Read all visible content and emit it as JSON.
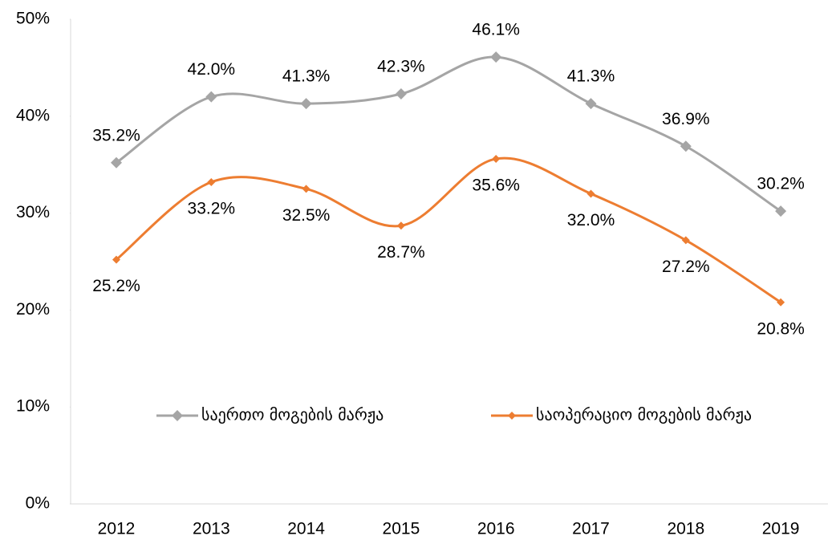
{
  "chart_data": {
    "type": "line",
    "categories": [
      "2012",
      "2013",
      "2014",
      "2015",
      "2016",
      "2017",
      "2018",
      "2019"
    ],
    "series": [
      {
        "name": "საერთო მოგების მარჟა",
        "color": "#a5a5a5",
        "marker": "diamond",
        "values": [
          35.2,
          42.0,
          41.3,
          42.3,
          46.1,
          41.3,
          36.9,
          30.2
        ],
        "value_labels": [
          "35.2%",
          "42.0%",
          "41.3%",
          "42.3%",
          "46.1%",
          "41.3%",
          "36.9%",
          "30.2%"
        ]
      },
      {
        "name": "საოპერაციო მოგების მარჟა",
        "color": "#ed7d31",
        "marker": "diamond",
        "values": [
          25.2,
          33.2,
          32.5,
          28.7,
          35.6,
          32.0,
          27.2,
          20.8
        ],
        "value_labels": [
          "25.2%",
          "33.2%",
          "32.5%",
          "28.7%",
          "35.6%",
          "32.0%",
          "27.2%",
          "20.8%"
        ]
      }
    ],
    "ylim": [
      0,
      50
    ],
    "yticks": [
      {
        "value": 0,
        "label": "0%"
      },
      {
        "value": 10,
        "label": "10%"
      },
      {
        "value": 20,
        "label": "20%"
      },
      {
        "value": 30,
        "label": "30%"
      },
      {
        "value": 40,
        "label": "40%"
      },
      {
        "value": 50,
        "label": "50%"
      }
    ],
    "grid": false,
    "smooth": true,
    "legend": "center"
  }
}
